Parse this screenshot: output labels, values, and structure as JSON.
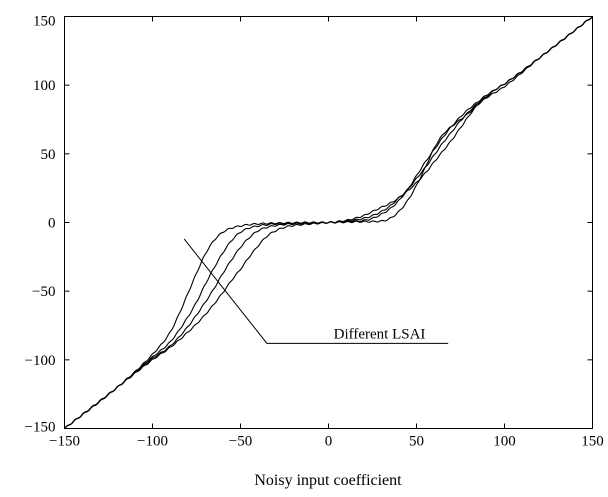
{
  "chart_data": {
    "type": "line",
    "title": "",
    "xlabel": "Noisy input coefficient",
    "ylabel": "",
    "xlim": [
      -150,
      150
    ],
    "ylim": [
      -150,
      150
    ],
    "xticks": [
      -150,
      -100,
      -50,
      0,
      50,
      100,
      150
    ],
    "yticks": [
      -150,
      -100,
      -50,
      0,
      50,
      100,
      150
    ],
    "xtick_labels": [
      "−150",
      "−100",
      "−50",
      "0",
      "50",
      "100",
      "150"
    ],
    "ytick_labels": [
      "−150",
      "−100",
      "−50",
      "0",
      "50",
      "100",
      "150"
    ],
    "grid": false,
    "legend": false,
    "line_color": "#000000",
    "annotation": {
      "text": "Different LSAI",
      "pointer_start": [
        -82,
        -12
      ],
      "pointer_elbow": [
        -35,
        -88
      ],
      "pointer_end": [
        68,
        -88
      ]
    },
    "series": [
      {
        "x": [
          -150,
          -120,
          -100,
          -90,
          -85,
          -80,
          -75,
          -70,
          -65,
          -60,
          -55,
          -50,
          -45,
          -40,
          -30,
          -20,
          -10,
          0,
          10,
          20,
          30,
          35,
          40,
          45,
          50,
          55,
          60,
          65,
          70,
          75,
          80,
          85,
          90,
          100,
          120,
          150
        ],
        "y": [
          -150,
          -120,
          -96,
          -80,
          -67,
          -52,
          -37,
          -23,
          -13,
          -7,
          -4,
          -2.5,
          -1.5,
          -1,
          -0.5,
          -0.2,
          0,
          0,
          0.3,
          0.6,
          1,
          3,
          8,
          16,
          27,
          40,
          54,
          64,
          70,
          75,
          80,
          86,
          91,
          99,
          120,
          150
        ]
      },
      {
        "x": [
          -150,
          -120,
          -100,
          -90,
          -80,
          -75,
          -70,
          -65,
          -60,
          -55,
          -50,
          -45,
          -40,
          -35,
          -30,
          -20,
          -10,
          0,
          10,
          20,
          25,
          30,
          35,
          40,
          45,
          50,
          55,
          60,
          65,
          70,
          75,
          80,
          85,
          90,
          95,
          100,
          120,
          150
        ],
        "y": [
          -150,
          -120,
          -98,
          -87,
          -69,
          -58,
          -45,
          -33,
          -22,
          -13,
          -7,
          -4,
          -2.5,
          -1.6,
          -1,
          -0.5,
          -0.2,
          0,
          0.5,
          1.5,
          3,
          6,
          10,
          16,
          24,
          34,
          44,
          53,
          62,
          70,
          77,
          83,
          88,
          93,
          97,
          101,
          120,
          150
        ]
      },
      {
        "x": [
          -150,
          -120,
          -100,
          -90,
          -80,
          -70,
          -65,
          -60,
          -55,
          -50,
          -45,
          -40,
          -35,
          -30,
          -25,
          -20,
          -10,
          0,
          10,
          20,
          25,
          30,
          35,
          40,
          45,
          50,
          55,
          60,
          65,
          70,
          75,
          80,
          85,
          90,
          95,
          100,
          120,
          150
        ],
        "y": [
          -150,
          -120,
          -99,
          -90,
          -76,
          -58,
          -48,
          -37,
          -27,
          -18,
          -11,
          -6,
          -3.5,
          -2.2,
          -1.4,
          -1,
          -0.4,
          0,
          1,
          3,
          5,
          8,
          12,
          18,
          24,
          32,
          40,
          49,
          58,
          66,
          74,
          81,
          87,
          92,
          97,
          101,
          120,
          150
        ]
      },
      {
        "x": [
          -150,
          -120,
          -100,
          -90,
          -80,
          -70,
          -60,
          -55,
          -50,
          -45,
          -40,
          -35,
          -30,
          -25,
          -20,
          -15,
          -10,
          0,
          10,
          15,
          20,
          25,
          30,
          35,
          40,
          45,
          50,
          55,
          60,
          65,
          70,
          75,
          80,
          85,
          90,
          95,
          100,
          120,
          150
        ],
        "y": [
          -150,
          -120,
          -100,
          -91,
          -80,
          -67,
          -51,
          -42,
          -34,
          -25,
          -17,
          -10,
          -6,
          -3.5,
          -2.2,
          -1.5,
          -1,
          0,
          1.5,
          3,
          5,
          8,
          11,
          14,
          18,
          23,
          29,
          36,
          44,
          52,
          60,
          69,
          78,
          86,
          92,
          97,
          101,
          120,
          150
        ]
      }
    ]
  }
}
